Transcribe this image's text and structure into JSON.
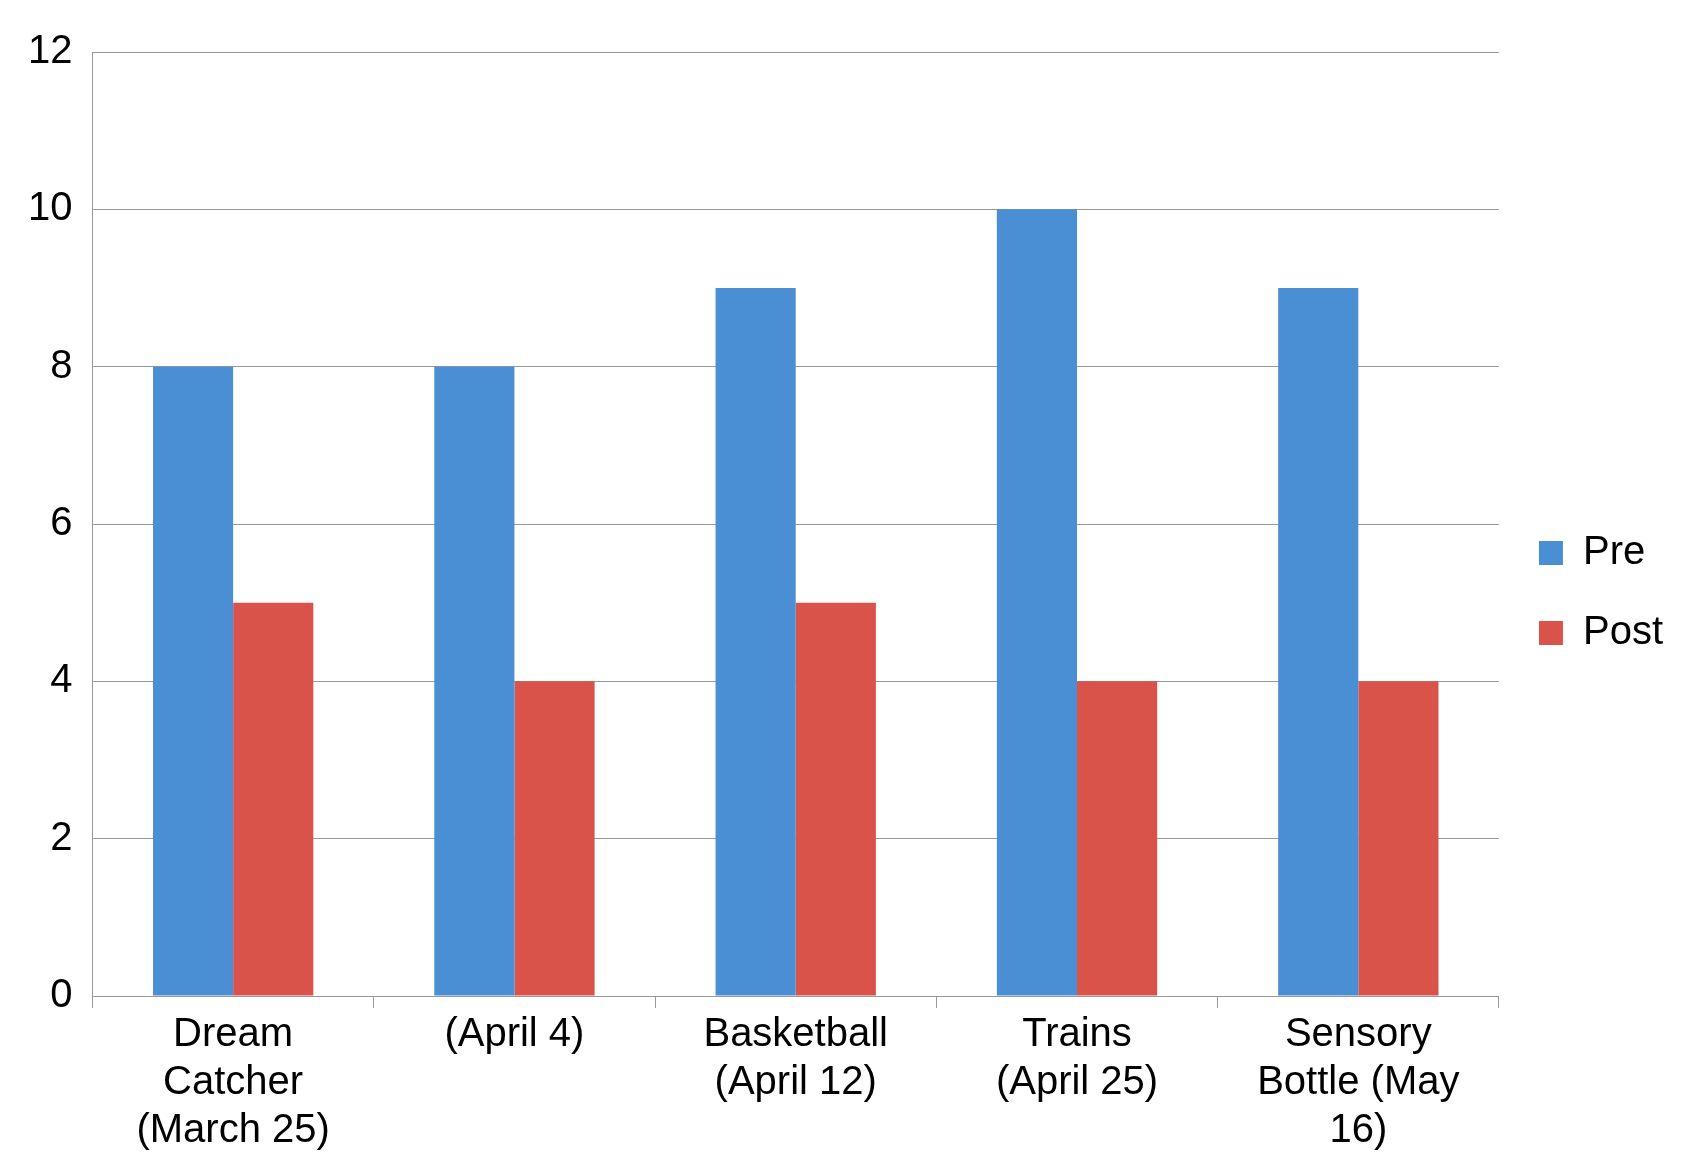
{
  "chart_data": {
    "type": "bar",
    "categories": [
      "Dream Catcher (March 25)",
      "(April 4)",
      "Basketball (April 12)",
      "Trains (April 25)",
      "Sensory Bottle (May 16)"
    ],
    "series": [
      {
        "name": "Pre",
        "color": "#4a8fd4",
        "values": [
          8,
          8,
          9,
          10,
          9
        ]
      },
      {
        "name": "Post",
        "color": "#d9534a",
        "values": [
          5,
          4,
          5,
          4,
          4
        ]
      }
    ],
    "ylim": [
      0,
      12
    ],
    "yticks": [
      0,
      2,
      4,
      6,
      8,
      10,
      12
    ],
    "grid": "y",
    "legend": "right"
  }
}
